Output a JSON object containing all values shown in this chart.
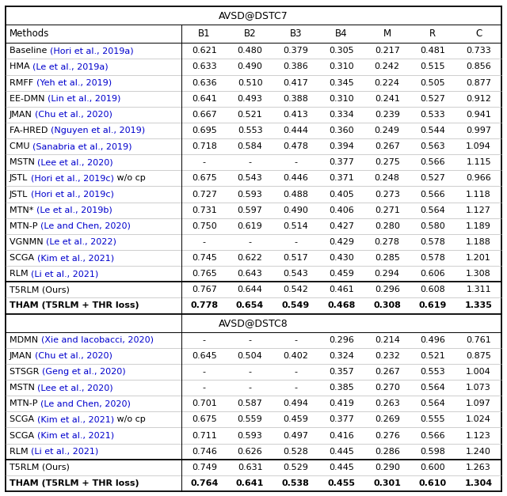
{
  "title1": "AVSD@DSTC7",
  "title2": "AVSD@DSTC8",
  "dstc7_rows": [
    {
      "method_black": "Baseline ",
      "method_blue": "(Hori et al., 2019a)",
      "method_suffix": "",
      "vals": [
        "0.621",
        "0.480",
        "0.379",
        "0.305",
        "0.217",
        "0.481",
        "0.733"
      ],
      "bold": false
    },
    {
      "method_black": "HMA ",
      "method_blue": "(Le et al., 2019a)",
      "method_suffix": "",
      "vals": [
        "0.633",
        "0.490",
        "0.386",
        "0.310",
        "0.242",
        "0.515",
        "0.856"
      ],
      "bold": false
    },
    {
      "method_black": "RMFF ",
      "method_blue": "(Yeh et al., 2019)",
      "method_suffix": "",
      "vals": [
        "0.636",
        "0.510",
        "0.417",
        "0.345",
        "0.224",
        "0.505",
        "0.877"
      ],
      "bold": false
    },
    {
      "method_black": "EE-DMN ",
      "method_blue": "(Lin et al., 2019)",
      "method_suffix": "",
      "vals": [
        "0.641",
        "0.493",
        "0.388",
        "0.310",
        "0.241",
        "0.527",
        "0.912"
      ],
      "bold": false
    },
    {
      "method_black": "JMAN ",
      "method_blue": "(Chu et al., 2020)",
      "method_suffix": "",
      "vals": [
        "0.667",
        "0.521",
        "0.413",
        "0.334",
        "0.239",
        "0.533",
        "0.941"
      ],
      "bold": false
    },
    {
      "method_black": "FA-HRED ",
      "method_blue": "(Nguyen et al., 2019)",
      "method_suffix": "",
      "vals": [
        "0.695",
        "0.553",
        "0.444",
        "0.360",
        "0.249",
        "0.544",
        "0.997"
      ],
      "bold": false
    },
    {
      "method_black": "CMU ",
      "method_blue": "(Sanabria et al., 2019)",
      "method_suffix": "",
      "vals": [
        "0.718",
        "0.584",
        "0.478",
        "0.394",
        "0.267",
        "0.563",
        "1.094"
      ],
      "bold": false
    },
    {
      "method_black": "MSTN ",
      "method_blue": "(Lee et al., 2020)",
      "method_suffix": "",
      "vals": [
        "-",
        "-",
        "-",
        "0.377",
        "0.275",
        "0.566",
        "1.115"
      ],
      "bold": false
    },
    {
      "method_black": "JSTL ",
      "method_blue": "(Hori et al., 2019c)",
      "method_suffix": " w/o cp",
      "vals": [
        "0.675",
        "0.543",
        "0.446",
        "0.371",
        "0.248",
        "0.527",
        "0.966"
      ],
      "bold": false
    },
    {
      "method_black": "JSTL ",
      "method_blue": "(Hori et al., 2019c)",
      "method_suffix": "",
      "vals": [
        "0.727",
        "0.593",
        "0.488",
        "0.405",
        "0.273",
        "0.566",
        "1.118"
      ],
      "bold": false
    },
    {
      "method_black": "MTN* ",
      "method_blue": "(Le et al., 2019b)",
      "method_suffix": "",
      "vals": [
        "0.731",
        "0.597",
        "0.490",
        "0.406",
        "0.271",
        "0.564",
        "1.127"
      ],
      "bold": false
    },
    {
      "method_black": "MTN-P ",
      "method_blue": "(Le and Chen, 2020)",
      "method_suffix": "",
      "vals": [
        "0.750",
        "0.619",
        "0.514",
        "0.427",
        "0.280",
        "0.580",
        "1.189"
      ],
      "bold": false
    },
    {
      "method_black": "VGNMN ",
      "method_blue": "(Le et al., 2022)",
      "method_suffix": "",
      "vals": [
        "-",
        "-",
        "-",
        "0.429",
        "0.278",
        "0.578",
        "1.188"
      ],
      "bold": false
    },
    {
      "method_black": "SCGA ",
      "method_blue": "(Kim et al., 2021)",
      "method_suffix": "",
      "vals": [
        "0.745",
        "0.622",
        "0.517",
        "0.430",
        "0.285",
        "0.578",
        "1.201"
      ],
      "bold": false
    },
    {
      "method_black": "RLM ",
      "method_blue": "(Li et al., 2021)",
      "method_suffix": "",
      "vals": [
        "0.765",
        "0.643",
        "0.543",
        "0.459",
        "0.294",
        "0.606",
        "1.308"
      ],
      "bold": false
    },
    {
      "method_black": "T5RLM (Ours)",
      "method_blue": "",
      "method_suffix": "",
      "vals": [
        "0.767",
        "0.644",
        "0.542",
        "0.461",
        "0.296",
        "0.608",
        "1.311"
      ],
      "bold": false
    },
    {
      "method_black": "THAM (T5RLM + THR loss)",
      "method_blue": "",
      "method_suffix": "",
      "vals": [
        "0.778",
        "0.654",
        "0.549",
        "0.468",
        "0.308",
        "0.619",
        "1.335"
      ],
      "bold": true
    }
  ],
  "dstc8_rows": [
    {
      "method_black": "MDMN ",
      "method_blue": "(Xie and Iacobacci, 2020)",
      "method_suffix": "",
      "vals": [
        "-",
        "-",
        "-",
        "0.296",
        "0.214",
        "0.496",
        "0.761"
      ],
      "bold": false
    },
    {
      "method_black": "JMAN ",
      "method_blue": "(Chu et al., 2020)",
      "method_suffix": "",
      "vals": [
        "0.645",
        "0.504",
        "0.402",
        "0.324",
        "0.232",
        "0.521",
        "0.875"
      ],
      "bold": false
    },
    {
      "method_black": "STSGR ",
      "method_blue": "(Geng et al., 2020)",
      "method_suffix": "",
      "vals": [
        "-",
        "-",
        "-",
        "0.357",
        "0.267",
        "0.553",
        "1.004"
      ],
      "bold": false
    },
    {
      "method_black": "MSTN ",
      "method_blue": "(Lee et al., 2020)",
      "method_suffix": "",
      "vals": [
        "-",
        "-",
        "-",
        "0.385",
        "0.270",
        "0.564",
        "1.073"
      ],
      "bold": false
    },
    {
      "method_black": "MTN-P ",
      "method_blue": "(Le and Chen, 2020)",
      "method_suffix": "",
      "vals": [
        "0.701",
        "0.587",
        "0.494",
        "0.419",
        "0.263",
        "0.564",
        "1.097"
      ],
      "bold": false
    },
    {
      "method_black": "SCGA ",
      "method_blue": "(Kim et al., 2021)",
      "method_suffix": " w/o cp",
      "vals": [
        "0.675",
        "0.559",
        "0.459",
        "0.377",
        "0.269",
        "0.555",
        "1.024"
      ],
      "bold": false
    },
    {
      "method_black": "SCGA ",
      "method_blue": "(Kim et al., 2021)",
      "method_suffix": "",
      "vals": [
        "0.711",
        "0.593",
        "0.497",
        "0.416",
        "0.276",
        "0.566",
        "1.123"
      ],
      "bold": false
    },
    {
      "method_black": "RLM ",
      "method_blue": "(Li et al., 2021)",
      "method_suffix": "",
      "vals": [
        "0.746",
        "0.626",
        "0.528",
        "0.445",
        "0.286",
        "0.598",
        "1.240"
      ],
      "bold": false
    },
    {
      "method_black": "T5RLM (Ours)",
      "method_blue": "",
      "method_suffix": "",
      "vals": [
        "0.749",
        "0.631",
        "0.529",
        "0.445",
        "0.290",
        "0.600",
        "1.263"
      ],
      "bold": false
    },
    {
      "method_black": "THAM (T5RLM + THR loss)",
      "method_blue": "",
      "method_suffix": "",
      "vals": [
        "0.764",
        "0.641",
        "0.538",
        "0.455",
        "0.301",
        "0.610",
        "1.304"
      ],
      "bold": true
    }
  ],
  "col_headers": [
    "B1",
    "B2",
    "B3",
    "B4",
    "M",
    "R",
    "C"
  ],
  "ref_color": "#0000CD",
  "black_color": "#000000",
  "bg_color": "#FFFFFF"
}
